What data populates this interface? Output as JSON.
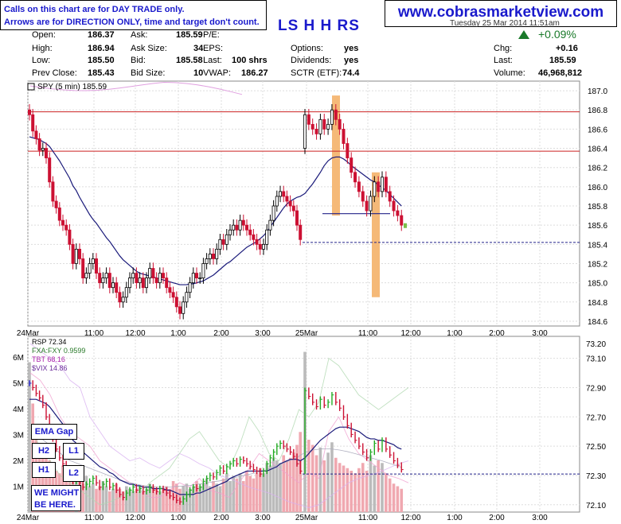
{
  "notice": {
    "line1": "Calls on this chart are for DAY TRADE only.",
    "line2": "Arrows are for DIRECTION ONLY, time and target don't count."
  },
  "website": "www.cobrasmarketview.com",
  "chart_title": "LS H H RS",
  "date_partial": "Tuesday  25 Mar 2014  11:51am",
  "quote": {
    "open_label": "Open:",
    "open": "186.37",
    "high_label": "High:",
    "high": "186.94",
    "low_label": "Low:",
    "low": "185.50",
    "prev_label": "Prev Close:",
    "prev": "185.43",
    "ask_label": "Ask:",
    "ask": "185.59",
    "asksize_label": "Ask Size:",
    "asksize": "34",
    "bid_label": "Bid:",
    "bid": "185.58",
    "bidsize_label": "Bid Size:",
    "bidsize": "10",
    "pe_label": "P/E:",
    "pe": "",
    "eps_label": "EPS:",
    "eps": "",
    "last_label": "Last:",
    "last_size": "100 shrs",
    "vwap_label": "VWAP:",
    "vwap": "186.27",
    "options_label": "Options:",
    "options": "yes",
    "dividends_label": "Dividends:",
    "dividends": "yes",
    "sctr_label": "SCTR (ETF):",
    "sctr": "74.4",
    "pct_change": "+0.09%",
    "chg_label": "Chg:",
    "chg": "+0.16",
    "last2_label": "Last:",
    "last2": "185.59",
    "volume_label": "Volume:",
    "volume": "46,968,812"
  },
  "annotations": {
    "ema_gap": "EMA Gap",
    "h2": "H2",
    "l1": "L1",
    "h1": "H1",
    "l2": "L2",
    "might_1": "WE MIGHT",
    "might_2": "BE HERE."
  },
  "colors": {
    "up": "#000000",
    "down": "#cc1133",
    "ema": "#1a1a7a",
    "pink": "#e0a0e0",
    "highlight": "#f5b978",
    "redline": "#cc2222"
  },
  "chart_data": [
    {
      "type": "candlestick",
      "title": "SPY (5 min) 185.59",
      "ylim": [
        184.55,
        187.1
      ],
      "yticks": [
        184.6,
        184.8,
        185.0,
        185.2,
        185.4,
        185.6,
        185.8,
        186.0,
        186.2,
        186.4,
        186.6,
        186.8,
        187.0
      ],
      "xticks": [
        "24Mar",
        "11:00",
        "12:00",
        "1:00",
        "2:00",
        "3:00",
        "25Mar",
        "11:00",
        "12:00",
        "1:00",
        "2:00",
        "3:00"
      ],
      "closes": [
        186.75,
        186.58,
        186.5,
        186.38,
        186.4,
        186.3,
        186.05,
        185.85,
        185.78,
        185.65,
        185.6,
        185.55,
        185.4,
        185.2,
        185.35,
        185.25,
        185.05,
        185.1,
        185.2,
        185.25,
        185.1,
        185.0,
        185.05,
        185.1,
        184.95,
        185.0,
        184.9,
        184.8,
        184.85,
        184.95,
        185.05,
        185.1,
        185.0,
        185.05,
        184.95,
        185.05,
        185.15,
        185.05,
        185.0,
        185.1,
        185.05,
        184.95,
        184.9,
        184.85,
        184.75,
        184.68,
        184.8,
        184.9,
        185.0,
        185.1,
        185.05,
        185.05,
        185.2,
        185.25,
        185.3,
        185.25,
        185.35,
        185.45,
        185.4,
        185.5,
        185.55,
        185.6,
        185.55,
        185.65,
        185.6,
        185.55,
        185.5,
        185.45,
        185.4,
        185.35,
        185.4,
        185.55,
        185.65,
        185.8,
        185.9,
        185.95,
        185.9,
        185.85,
        185.8,
        185.75,
        185.6,
        185.45,
        186.75,
        186.65,
        186.6,
        186.55,
        186.7,
        186.6,
        186.65,
        186.8,
        186.7,
        186.6,
        186.45,
        186.3,
        186.15,
        186.05,
        185.95,
        185.85,
        185.75,
        185.9,
        186.05,
        185.95,
        186.1,
        185.95,
        185.85,
        185.75,
        185.7,
        185.6
      ],
      "ema": [
        186.52,
        186.51,
        186.5,
        186.49,
        186.47,
        186.45,
        186.42,
        186.37,
        186.32,
        186.27,
        186.21,
        186.15,
        186.09,
        186.01,
        185.96,
        185.89,
        185.83,
        185.77,
        185.71,
        185.66,
        185.62,
        185.57,
        185.52,
        185.47,
        185.43,
        185.38,
        185.33,
        185.28,
        185.24,
        185.21,
        185.18,
        185.15,
        185.12,
        185.1,
        185.09,
        185.08,
        185.07,
        185.06,
        185.05,
        185.04,
        185.03,
        185.02,
        185.01,
        185.0,
        184.99,
        184.98,
        184.98,
        184.98,
        184.99,
        184.99,
        185.0,
        185.01,
        185.02,
        185.04,
        185.06,
        185.08,
        185.11,
        185.14,
        185.17,
        185.2,
        185.22,
        185.25,
        185.28,
        185.31,
        185.34,
        185.37,
        185.39,
        185.41,
        185.43,
        185.46,
        185.49,
        185.53,
        185.58,
        185.63,
        185.68,
        185.73,
        185.78,
        185.82,
        185.85,
        185.87,
        185.89,
        185.9,
        185.93,
        185.98,
        186.03,
        186.09,
        186.15,
        186.22,
        186.27,
        186.3,
        186.31,
        186.31,
        186.29,
        186.26,
        186.22,
        186.19,
        186.16,
        186.13,
        186.1,
        186.07,
        186.05,
        186.02,
        185.99,
        185.96,
        185.92,
        185.88,
        185.84,
        185.8
      ],
      "hlines": [
        186.78,
        186.37,
        185.42
      ],
      "trendline": [
        185.72,
        185.72
      ],
      "highlight_bars": [
        [
          186.95,
          185.7
        ],
        [
          186.15,
          184.85
        ]
      ]
    },
    {
      "type": "volume",
      "title": "RSP 72.34",
      "overlays": [
        "FXA:FXY 0.9599",
        "TBT 68.16",
        "$VIX 14.86"
      ],
      "ylim_left": [
        0,
        6.8
      ],
      "yticks_left": [
        "1M",
        "2M",
        "3M",
        "4M",
        "5M",
        "6M"
      ],
      "ylim_right": [
        72.05,
        73.25
      ],
      "yticks_right": [
        72.1,
        72.3,
        72.5,
        72.7,
        72.9,
        73.1
      ],
      "yticks_right_labels": [
        "72.10",
        "72.30",
        "72.50",
        "72.70",
        "72.90",
        "73.10"
      ],
      "top_right_label": "73.20",
      "xticks": [
        "24Mar",
        "11:00",
        "12:00",
        "1:00",
        "2:00",
        "3:00",
        "25Mar",
        "11:00",
        "12:00",
        "1:00",
        "2:00",
        "3:00"
      ],
      "volume": [
        5.8,
        4.2,
        3.1,
        2.5,
        2.2,
        2.4,
        2.0,
        1.9,
        1.6,
        1.5,
        1.8,
        1.4,
        1.3,
        1.7,
        1.5,
        1.2,
        1.1,
        1.4,
        1.0,
        1.1,
        0.9,
        1.0,
        1.2,
        1.0,
        0.8,
        0.9,
        1.1,
        0.9,
        0.8,
        1.0,
        0.9,
        0.8,
        0.9,
        1.0,
        0.8,
        0.9,
        1.1,
        1.0,
        0.9,
        0.8,
        0.9,
        1.0,
        0.9,
        1.2,
        1.1,
        0.9,
        1.0,
        1.1,
        0.9,
        1.0,
        1.2,
        1.0,
        1.1,
        1.3,
        1.0,
        1.2,
        1.1,
        1.0,
        1.3,
        1.5,
        1.2,
        1.4,
        1.3,
        1.5,
        1.2,
        1.6,
        1.4,
        1.3,
        1.5,
        1.7,
        1.5,
        1.9,
        1.8,
        2.1,
        2.0,
        1.9,
        2.2,
        2.0,
        2.1,
        2.3,
        2.6,
        3.1,
        6.2,
        2.8,
        2.6,
        2.2,
        2.5,
        2.0,
        2.3,
        2.7,
        2.1,
        1.9,
        1.8,
        1.7,
        1.6,
        1.5,
        1.7,
        1.9,
        1.6,
        2.2,
        1.8,
        2.0,
        1.9,
        1.5,
        1.3,
        1.1,
        1.0,
        0.9
      ],
      "vol_ma": [
        3.0,
        2.95,
        2.9,
        2.85,
        2.8,
        2.7,
        2.6,
        2.5,
        2.4,
        2.3,
        2.2,
        2.1,
        2.0,
        1.95,
        1.9,
        1.85,
        1.8,
        1.75,
        1.7,
        1.65,
        1.6,
        1.55,
        1.5,
        1.45,
        1.4,
        1.35,
        1.3,
        1.25,
        1.2,
        1.17,
        1.14,
        1.11,
        1.08,
        1.05,
        1.03,
        1.01,
        1.0,
        0.99,
        0.98,
        0.97,
        0.97,
        0.97,
        0.97,
        0.98,
        0.99,
        1.0,
        1.01,
        1.02,
        1.03,
        1.05,
        1.07,
        1.09,
        1.11,
        1.13,
        1.15,
        1.17,
        1.19,
        1.21,
        1.23,
        1.26,
        1.29,
        1.32,
        1.35,
        1.38,
        1.41,
        1.44,
        1.47,
        1.5,
        1.53,
        1.56,
        1.6,
        1.65,
        1.7,
        1.75,
        1.8,
        1.85,
        1.9,
        1.95,
        2.0,
        2.05,
        2.1,
        2.2,
        2.3,
        2.35,
        2.4,
        2.42,
        2.44,
        2.45,
        2.45,
        2.44,
        2.42,
        2.4,
        2.37,
        2.34,
        2.3,
        2.26,
        2.22,
        2.18,
        2.14,
        2.1,
        2.06,
        2.02,
        1.98,
        1.93,
        1.88,
        1.83,
        1.78,
        1.73
      ],
      "rsp": [
        72.93,
        72.9,
        72.86,
        72.83,
        72.78,
        72.7,
        72.62,
        72.55,
        72.48,
        72.42,
        72.38,
        72.35,
        72.3,
        72.26,
        72.28,
        72.25,
        72.22,
        72.24,
        72.26,
        72.28,
        72.25,
        72.22,
        72.24,
        72.26,
        72.22,
        72.23,
        72.2,
        72.17,
        72.15,
        72.18,
        72.2,
        72.22,
        72.2,
        72.21,
        72.19,
        72.2,
        72.22,
        72.2,
        72.19,
        72.21,
        72.2,
        72.18,
        72.16,
        72.15,
        72.13,
        72.12,
        72.14,
        72.17,
        72.2,
        72.22,
        72.21,
        72.22,
        72.26,
        72.28,
        72.3,
        72.29,
        72.32,
        72.35,
        72.33,
        72.36,
        72.38,
        72.4,
        72.38,
        72.41,
        72.4,
        72.38,
        72.36,
        72.34,
        72.33,
        72.31,
        72.33,
        72.38,
        72.42,
        72.46,
        72.5,
        72.52,
        72.5,
        72.48,
        72.46,
        72.43,
        72.38,
        72.33,
        72.88,
        72.84,
        72.8,
        72.77,
        72.82,
        72.78,
        72.8,
        72.85,
        72.8,
        72.76,
        72.7,
        72.64,
        72.58,
        72.54,
        72.5,
        72.46,
        72.42,
        72.46,
        72.52,
        72.48,
        72.54,
        72.48,
        72.44,
        72.4,
        72.37,
        72.34
      ],
      "rsp_ema": [
        72.82,
        72.82,
        72.82,
        72.81,
        72.8,
        72.79,
        72.77,
        72.74,
        72.71,
        72.68,
        72.65,
        72.61,
        72.58,
        72.54,
        72.52,
        72.49,
        72.46,
        72.44,
        72.42,
        72.4,
        72.38,
        72.36,
        72.35,
        72.34,
        72.32,
        72.31,
        72.29,
        72.27,
        72.26,
        72.25,
        72.24,
        72.24,
        72.23,
        72.23,
        72.22,
        72.22,
        72.22,
        72.21,
        72.21,
        72.21,
        72.21,
        72.2,
        72.2,
        72.19,
        72.18,
        72.17,
        72.17,
        72.17,
        72.17,
        72.17,
        72.18,
        72.18,
        72.19,
        72.2,
        72.21,
        72.22,
        72.23,
        72.24,
        72.25,
        72.26,
        72.28,
        72.29,
        72.3,
        72.31,
        72.32,
        72.33,
        72.33,
        72.33,
        72.33,
        72.33,
        72.33,
        72.33,
        72.34,
        72.35,
        72.36,
        72.38,
        72.39,
        72.4,
        72.41,
        72.41,
        72.41,
        72.4,
        72.42,
        72.45,
        72.48,
        72.51,
        72.54,
        72.56,
        72.58,
        72.6,
        72.62,
        72.63,
        72.63,
        72.63,
        72.62,
        72.61,
        72.6,
        72.58,
        72.56,
        72.55,
        72.55,
        72.54,
        72.54,
        72.53,
        72.52,
        72.51,
        72.49,
        72.48
      ],
      "rsp_hline": 72.31,
      "overlay_lines": {
        "fxa": [
          72.6,
          72.5,
          72.4,
          72.3,
          72.25,
          72.2,
          72.15,
          72.1,
          72.12,
          72.15,
          72.2,
          72.18,
          72.25,
          72.3,
          72.35,
          72.45,
          72.55,
          72.6,
          72.5,
          72.4,
          72.35,
          72.5,
          72.7,
          72.6,
          72.45,
          72.4,
          72.55,
          72.75,
          72.7,
          72.8,
          73.1,
          73.05,
          72.95,
          72.85,
          72.8,
          72.75,
          72.8,
          72.85,
          72.9
        ],
        "tbt": [
          73.0,
          72.95,
          72.85,
          72.7,
          72.6,
          72.55,
          72.5,
          72.4,
          72.35,
          72.3,
          72.25,
          72.2,
          72.15,
          72.15,
          72.2,
          72.25,
          72.22,
          72.28,
          72.2,
          72.18,
          72.15,
          72.25,
          72.35,
          72.45,
          72.4,
          72.35,
          72.3,
          72.25,
          72.32,
          72.28,
          72.6,
          72.7,
          72.55,
          72.45,
          72.4,
          72.35,
          72.3,
          72.28,
          72.25
        ],
        "vix": [
          73.2,
          73.15,
          73.1,
          73.05,
          72.95,
          72.9,
          72.7,
          72.6,
          72.5,
          72.45,
          72.4,
          72.42,
          72.38,
          72.35,
          72.4,
          72.45,
          72.42,
          72.38,
          72.35,
          72.3,
          72.28,
          72.25,
          72.22,
          72.2,
          72.18,
          72.15,
          72.12,
          72.1,
          72.08,
          72.1,
          72.15,
          72.2,
          72.25,
          72.28,
          72.3,
          72.32,
          72.35,
          72.38,
          72.4
        ]
      }
    }
  ]
}
